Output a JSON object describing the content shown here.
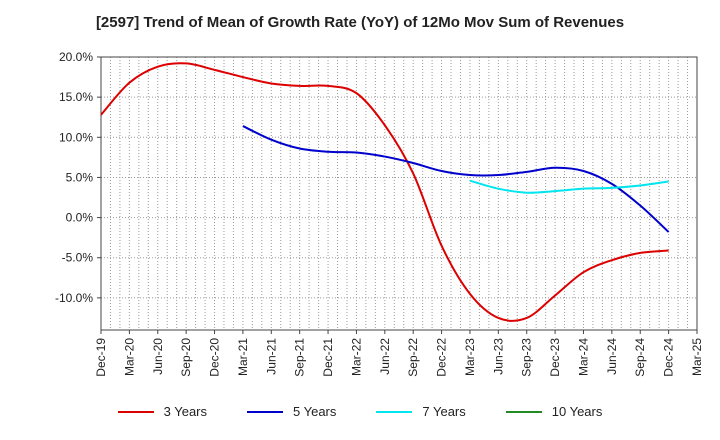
{
  "chart_data": {
    "type": "line",
    "title": "[2597]  Trend of Mean of Growth Rate (YoY) of 12Mo Mov Sum of Revenues",
    "xlabel": "",
    "ylabel": "",
    "ylim": [
      -14,
      20
    ],
    "y_ticks": [
      20,
      15,
      10,
      5,
      0,
      -5,
      -10
    ],
    "y_tick_labels": [
      "20.0%",
      "15.0%",
      "10.0%",
      "5.0%",
      "0.0%",
      "-5.0%",
      "-10.0%"
    ],
    "x_tick_labels": [
      "Dec-19",
      "Mar-20",
      "Jun-20",
      "Sep-20",
      "Dec-20",
      "Mar-21",
      "Jun-21",
      "Sep-21",
      "Dec-21",
      "Mar-22",
      "Jun-22",
      "Sep-22",
      "Dec-22",
      "Mar-23",
      "Jun-23",
      "Sep-23",
      "Dec-23",
      "Mar-24",
      "Jun-24",
      "Sep-24",
      "Dec-24",
      "Mar-25"
    ],
    "grid": true,
    "legend_position": "bottom",
    "series": [
      {
        "name": "3 Years",
        "color": "#dd0000",
        "points": [
          [
            0,
            12.8
          ],
          [
            1,
            16.8
          ],
          [
            2,
            18.8
          ],
          [
            3,
            19.2
          ],
          [
            4,
            18.4
          ],
          [
            5,
            17.5
          ],
          [
            6,
            16.7
          ],
          [
            7,
            16.4
          ],
          [
            8,
            16.4
          ],
          [
            9,
            15.5
          ],
          [
            10,
            11.5
          ],
          [
            11,
            5.5
          ],
          [
            12,
            -3.5
          ],
          [
            13,
            -9.5
          ],
          [
            14,
            -12.5
          ],
          [
            15,
            -12.5
          ],
          [
            16,
            -9.7
          ],
          [
            17,
            -6.8
          ],
          [
            18,
            -5.3
          ],
          [
            19,
            -4.4
          ],
          [
            20,
            -4.1
          ]
        ]
      },
      {
        "name": "5 Years",
        "color": "#0000cc",
        "points": [
          [
            5,
            11.4
          ],
          [
            6,
            9.7
          ],
          [
            7,
            8.6
          ],
          [
            8,
            8.2
          ],
          [
            9,
            8.1
          ],
          [
            10,
            7.6
          ],
          [
            11,
            6.8
          ],
          [
            12,
            5.8
          ],
          [
            13,
            5.3
          ],
          [
            14,
            5.3
          ],
          [
            15,
            5.7
          ],
          [
            16,
            6.2
          ],
          [
            17,
            5.8
          ],
          [
            18,
            4.2
          ],
          [
            19,
            1.5
          ],
          [
            20,
            -1.8
          ]
        ]
      },
      {
        "name": "7 Years",
        "color": "#00e5ee",
        "points": [
          [
            13,
            4.6
          ],
          [
            14,
            3.6
          ],
          [
            15,
            3.1
          ],
          [
            16,
            3.3
          ],
          [
            17,
            3.6
          ],
          [
            18,
            3.7
          ],
          [
            19,
            4.0
          ],
          [
            20,
            4.5
          ]
        ]
      },
      {
        "name": "10 Years",
        "color": "#228b22",
        "points": []
      }
    ]
  }
}
